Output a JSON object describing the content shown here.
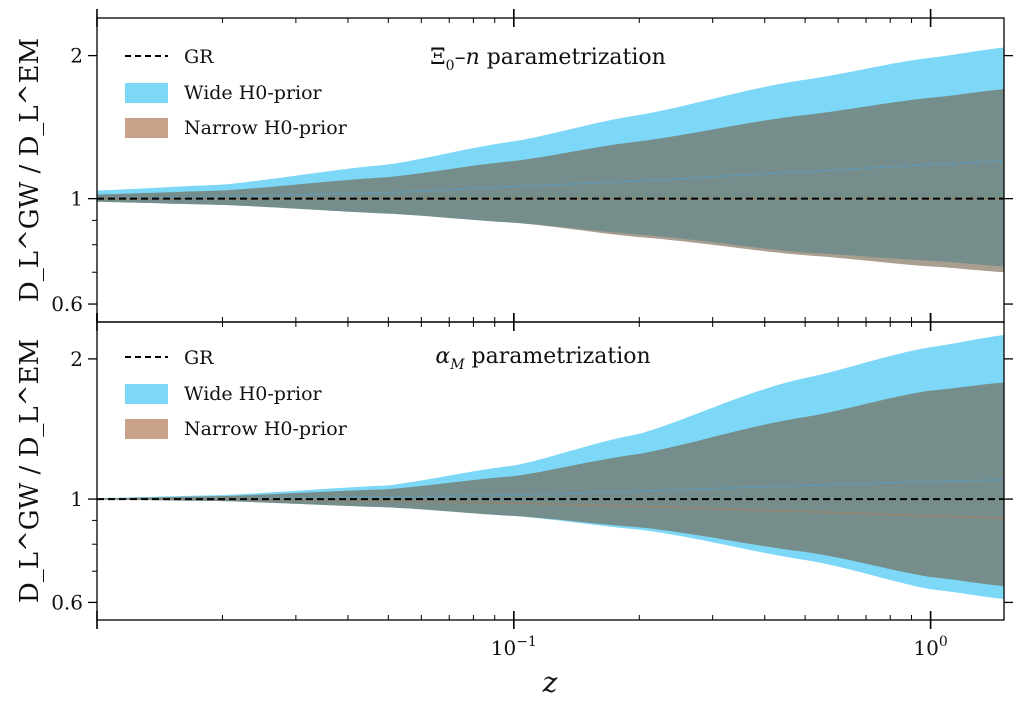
{
  "chart_data": [
    {
      "type": "area",
      "title": "Ξ0–n parametrization",
      "title_parts": {
        "symbol": "Ξ",
        "sub": "0",
        "dash": "–",
        "var": "n",
        "rest": " parametrization"
      },
      "xlabel": "z",
      "ylabel": "D_L^GW / D_L^EM",
      "xscale": "log",
      "yscale": "log",
      "xlim": [
        0.01,
        1.5
      ],
      "ylim": [
        0.55,
        2.4
      ],
      "yticks": [
        0.6,
        1,
        2
      ],
      "yticklabels": [
        "0.6",
        "1",
        "2"
      ],
      "legend_position": "upper left",
      "x": [
        0.01,
        0.02,
        0.05,
        0.1,
        0.2,
        0.5,
        1.0,
        1.5
      ],
      "series": [
        {
          "name": "GR",
          "style": "dashed",
          "color": "#000000",
          "values": [
            1,
            1,
            1,
            1,
            1,
            1,
            1,
            1
          ]
        },
        {
          "name": "Wide H0-prior",
          "color": "#7dd8f7",
          "lower": [
            0.985,
            0.97,
            0.93,
            0.89,
            0.84,
            0.77,
            0.74,
            0.72
          ],
          "upper": [
            1.04,
            1.07,
            1.18,
            1.32,
            1.5,
            1.78,
            1.98,
            2.08
          ],
          "median": [
            1.0,
            1.01,
            1.03,
            1.06,
            1.09,
            1.14,
            1.18,
            1.2
          ]
        },
        {
          "name": "Narrow H0-prior",
          "color": "#c8a28a",
          "lower": [
            0.985,
            0.97,
            0.93,
            0.89,
            0.83,
            0.76,
            0.72,
            0.7
          ],
          "upper": [
            1.02,
            1.04,
            1.11,
            1.2,
            1.32,
            1.5,
            1.63,
            1.7
          ],
          "median": [
            1.0,
            1.0,
            1.0,
            1.0,
            1.0,
            1.0,
            1.0,
            1.0
          ]
        }
      ]
    },
    {
      "type": "area",
      "title": "αM parametrization",
      "title_parts": {
        "symbol": "α",
        "sub": "M",
        "rest": " parametrization"
      },
      "xlabel": "z",
      "ylabel": "D_L^GW / D_L^EM",
      "xscale": "log",
      "yscale": "log",
      "xlim": [
        0.01,
        1.5
      ],
      "ylim": [
        0.55,
        2.4
      ],
      "yticks": [
        0.6,
        1,
        2
      ],
      "yticklabels": [
        "0.6",
        "1",
        "2"
      ],
      "xticks": [
        0.1,
        1
      ],
      "xticklabels": [
        {
          "base": "10",
          "exp": "−1"
        },
        {
          "base": "10",
          "exp": "0"
        }
      ],
      "legend_position": "upper left",
      "x": [
        0.01,
        0.02,
        0.05,
        0.1,
        0.2,
        0.5,
        1.0,
        1.5
      ],
      "series": [
        {
          "name": "GR",
          "style": "dashed",
          "color": "#000000",
          "values": [
            1,
            1,
            1,
            1,
            1,
            1,
            1,
            1
          ]
        },
        {
          "name": "Wide H0-prior",
          "color": "#7dd8f7",
          "lower": [
            0.998,
            0.99,
            0.96,
            0.92,
            0.86,
            0.74,
            0.64,
            0.61
          ],
          "upper": [
            1.005,
            1.02,
            1.07,
            1.18,
            1.38,
            1.82,
            2.12,
            2.25
          ],
          "median": [
            1.0,
            1.0,
            1.01,
            1.02,
            1.04,
            1.07,
            1.09,
            1.1
          ]
        },
        {
          "name": "Narrow H0-prior",
          "color": "#c8a28a",
          "lower": [
            0.998,
            0.99,
            0.96,
            0.92,
            0.87,
            0.77,
            0.68,
            0.65
          ],
          "upper": [
            1.003,
            1.015,
            1.05,
            1.12,
            1.25,
            1.5,
            1.71,
            1.78
          ],
          "median": [
            1.0,
            0.999,
            0.99,
            0.98,
            0.965,
            0.94,
            0.92,
            0.91
          ]
        }
      ]
    }
  ]
}
